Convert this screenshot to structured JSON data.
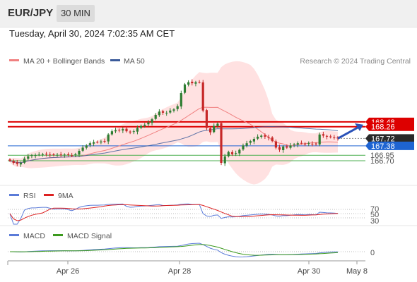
{
  "header": {
    "pair": "EUR/JPY",
    "timeframe": "30 MIN",
    "datetime": "Tuesday, April 30, 2024 7:02:35 AM CET"
  },
  "legend": {
    "bollinger": "MA 20 + Bollinger Bands",
    "ma50": "MA 50",
    "copyright": "Research © 2024 Trading Central",
    "rsi": "RSI",
    "rsi_ma": "9MA",
    "macd": "MACD",
    "macd_signal": "MACD Signal"
  },
  "colors": {
    "candle_up": "#2e7d32",
    "candle_down": "#c62828",
    "bollinger": "#f08080",
    "band_fill": "#ffd7d7",
    "ma50": "#3a5a9a",
    "resistance": "#dd0000",
    "pivot": "#1e64d2",
    "support": "#4caf50",
    "rsi": "#5b7bd8",
    "rsi_ma": "#dd2222",
    "macd": "#5b7bd8",
    "macd_signal": "#3c9a1e"
  },
  "chart_data": [
    {
      "type": "candlestick",
      "instrument": "EUR/JPY",
      "ylim": [
        165.6,
        170.9
      ],
      "x_ticks": [
        "Apr 26",
        "Apr 28",
        "Apr 30",
        "May 8"
      ],
      "price_levels": [
        {
          "label": "168.48",
          "value": 168.48,
          "kind": "resistance"
        },
        {
          "label": "168.26",
          "value": 168.26,
          "kind": "resistance"
        },
        {
          "label": "167.72",
          "value": 167.72,
          "kind": "last"
        },
        {
          "label": "167.38",
          "value": 167.38,
          "kind": "pivot"
        },
        {
          "label": "166.95",
          "value": 166.95,
          "kind": "support"
        },
        {
          "label": "166.70",
          "value": 166.7,
          "kind": "support"
        }
      ],
      "close": [
        166.7,
        166.6,
        166.55,
        166.6,
        166.8,
        166.9,
        166.95,
        166.95,
        166.98,
        167.0,
        167.0,
        166.98,
        166.96,
        166.97,
        166.97,
        166.98,
        166.96,
        166.94,
        167.0,
        167.15,
        167.3,
        167.4,
        167.5,
        167.55,
        167.55,
        167.58,
        167.6,
        167.9,
        168.05,
        168.1,
        168.1,
        168.15,
        168.05,
        168.0,
        168.05,
        168.2,
        168.3,
        168.35,
        168.45,
        168.6,
        168.8,
        168.95,
        168.9,
        168.9,
        169.0,
        169.05,
        169.2,
        169.8,
        170.2,
        170.3,
        170.25,
        170.3,
        170.3,
        169.0,
        168.2,
        168.0,
        168.3,
        168.4,
        166.6,
        166.9,
        167.1,
        167.0,
        167.05,
        167.2,
        167.4,
        167.5,
        167.6,
        167.7,
        167.8,
        167.85,
        167.8,
        167.75,
        167.6,
        167.3,
        167.2,
        167.35,
        167.3,
        167.4,
        167.45,
        167.5,
        167.5,
        167.45,
        167.5,
        167.48,
        167.45,
        167.9,
        167.85,
        167.8,
        167.78,
        167.75,
        167.72
      ]
    },
    {
      "type": "line",
      "title": "RSI",
      "series": [
        {
          "name": "RSI"
        },
        {
          "name": "9MA"
        }
      ],
      "tick_labels": [
        "70",
        "50",
        "30"
      ]
    },
    {
      "type": "line",
      "title": "MACD",
      "series": [
        {
          "name": "MACD"
        },
        {
          "name": "MACD Signal"
        }
      ],
      "tick_labels": [
        "0"
      ]
    }
  ]
}
